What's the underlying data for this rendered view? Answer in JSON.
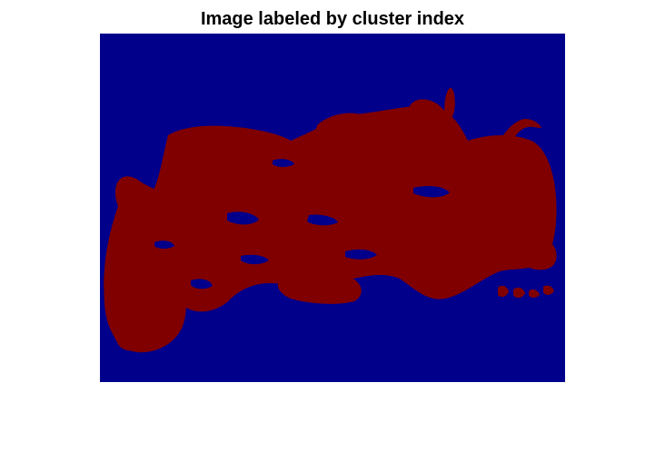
{
  "figure": {
    "title": "Image labeled by cluster index"
  },
  "image": {
    "description_colors": {
      "background_cluster": "#00008b",
      "foreground_cluster": "#800000"
    }
  }
}
